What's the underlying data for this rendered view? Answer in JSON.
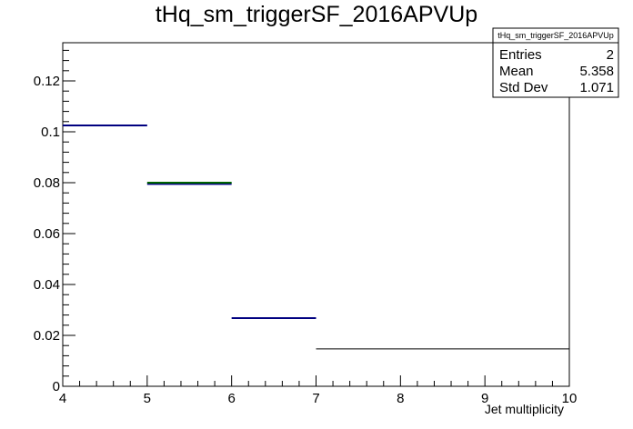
{
  "chart_data": {
    "type": "bar",
    "title": "tHq_sm_triggerSF_2016APVUp",
    "xlabel": "Jet multiplicity",
    "ylabel": "",
    "xlim": [
      4,
      10
    ],
    "ylim": [
      0,
      0.135
    ],
    "x_ticks": [
      "4",
      "5",
      "6",
      "7",
      "8",
      "9",
      "10"
    ],
    "y_ticks": [
      "0",
      "0.02",
      "0.04",
      "0.06",
      "0.08",
      "0.1",
      "0.12"
    ],
    "grid": false,
    "bins": [
      {
        "x_low": 4,
        "x_high": 5,
        "value": 0.1025,
        "color": "#000080"
      },
      {
        "x_low": 5,
        "x_high": 6,
        "value": 0.0795,
        "color": "#000080"
      },
      {
        "x_low": 6,
        "x_high": 7,
        "value": 0.0268,
        "color": "#000080"
      },
      {
        "x_low": 7,
        "x_high": 10,
        "value": 0.0147,
        "color": "#000000"
      }
    ],
    "overlay": {
      "x_low": 5,
      "x_high": 6,
      "value": 0.08,
      "color": "#006400"
    },
    "stats_box": {
      "title": "tHq_sm_triggerSF_2016APVUp",
      "rows": [
        {
          "label": "Entries",
          "value": "2"
        },
        {
          "label": "Mean",
          "value": "5.358"
        },
        {
          "label": "Std Dev",
          "value": "1.071"
        }
      ]
    }
  }
}
